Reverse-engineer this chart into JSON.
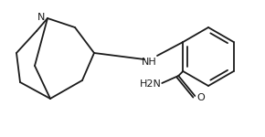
{
  "bg_color": "#ffffff",
  "line_color": "#1a1a1a",
  "line_width": 1.3,
  "font_color": "#1a1a1a",
  "figsize": [
    2.9,
    1.5
  ],
  "dpi": 100,
  "N_label": "N",
  "NH_label": "NH",
  "NH2O_label1": "H2N",
  "NH2O_label2": "O",
  "N_fs": 8.0,
  "NH_fs": 8.0
}
